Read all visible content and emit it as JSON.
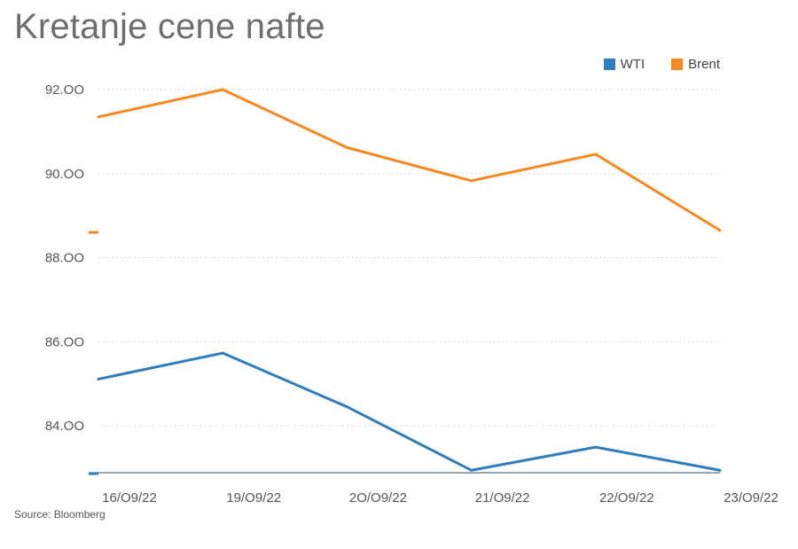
{
  "title": "Kretanje cene nafte",
  "source": "Source: Bloomberg",
  "chart_data": {
    "type": "line",
    "title": "Kretanje cene nafte",
    "xlabel": "",
    "ylabel": "",
    "categories": [
      "16/O9/22",
      "19/O9/22",
      "2O/O9/22",
      "21/O9/22",
      "22/O9/22",
      "23/O9/22"
    ],
    "y_ticks": [
      "84.OO",
      "86.OO",
      "88.OO",
      "90.OO",
      "92.OO"
    ],
    "ylim": [
      82.9,
      92.2
    ],
    "grid": true,
    "legend_position": "top-right",
    "series": [
      {
        "name": "WTI",
        "color": "#2e7dbd",
        "values": [
          85.11,
          85.73,
          84.45,
          82.94,
          83.49,
          82.94
        ]
      },
      {
        "name": "Brent",
        "color": "#f5891f",
        "values": [
          91.35,
          92.0,
          90.62,
          89.83,
          90.46,
          88.65
        ]
      }
    ]
  }
}
